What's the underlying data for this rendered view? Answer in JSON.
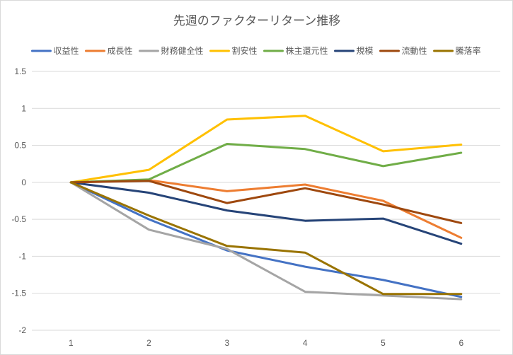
{
  "chart_data": {
    "type": "line",
    "title": "先週のファクターリターン推移",
    "xlabel": "",
    "ylabel": "",
    "x": [
      1,
      2,
      3,
      4,
      5,
      6
    ],
    "ylim": [
      -2,
      1.5
    ],
    "yticks": [
      1.5,
      1,
      0.5,
      0,
      -0.5,
      -1,
      -1.5,
      -2
    ],
    "grid": true,
    "legend_position": "top",
    "series": [
      {
        "name": "収益性",
        "color": "#4472c4",
        "values": [
          0,
          -0.5,
          -0.92,
          -1.14,
          -1.32,
          -1.55
        ]
      },
      {
        "name": "成長性",
        "color": "#ed7d31",
        "values": [
          0,
          0.03,
          -0.12,
          -0.03,
          -0.25,
          -0.75
        ]
      },
      {
        "name": "財務健全性",
        "color": "#a5a5a5",
        "values": [
          0,
          -0.64,
          -0.9,
          -1.48,
          -1.53,
          -1.58
        ]
      },
      {
        "name": "割安性",
        "color": "#ffc000",
        "values": [
          0,
          0.17,
          0.85,
          0.9,
          0.42,
          0.51
        ]
      },
      {
        "name": "株主還元性",
        "color": "#70ad47",
        "values": [
          0,
          0.04,
          0.52,
          0.45,
          0.22,
          0.4
        ]
      },
      {
        "name": "規模",
        "color": "#264478",
        "values": [
          0,
          -0.14,
          -0.38,
          -0.52,
          -0.49,
          -0.83
        ]
      },
      {
        "name": "流動性",
        "color": "#9e480e",
        "values": [
          0,
          0.02,
          -0.28,
          -0.08,
          -0.3,
          -0.55
        ]
      },
      {
        "name": "騰落率",
        "color": "#997300",
        "values": [
          0,
          -0.45,
          -0.86,
          -0.95,
          -1.51,
          -1.51
        ]
      }
    ]
  }
}
